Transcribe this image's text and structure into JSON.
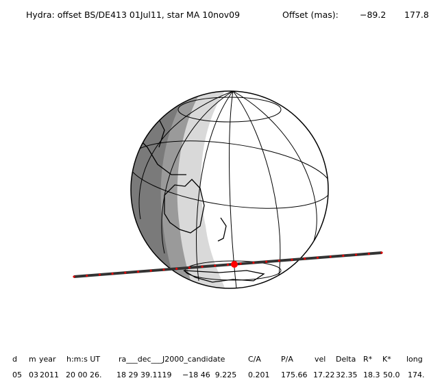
{
  "header": {
    "title": "Hydra: offset BS/DE413 01Jul11, star MA 10nov09",
    "offset_label": "Offset (mas):",
    "offset_values": [
      "−89.2",
      "177.8"
    ]
  },
  "table": {
    "headers": [
      "d",
      "m",
      "year",
      "h:m:s UT",
      "ra___dec___J2000_candidate",
      "C/A",
      "P/A",
      "vel",
      "Delta",
      "R*",
      "K*",
      "long"
    ],
    "rows": [
      [
        "05",
        "03",
        "2011",
        "20 00 26.",
        "18 29 39.1119",
        "−18 46  9.225",
        "0.201",
        "175.66",
        "17.22",
        "32.35",
        "18.3",
        "50.0",
        "174."
      ]
    ]
  }
}
